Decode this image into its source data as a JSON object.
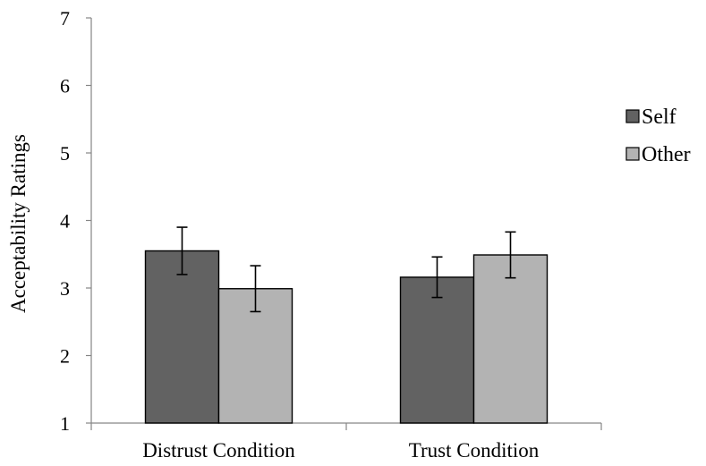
{
  "chart_data": {
    "type": "bar",
    "categories": [
      "Distrust Condition",
      "Trust Condition"
    ],
    "series": [
      {
        "name": "Self",
        "values": [
          3.55,
          3.16
        ],
        "errors": [
          0.35,
          0.3
        ],
        "color": "#626262"
      },
      {
        "name": "Other",
        "values": [
          2.99,
          3.49
        ],
        "errors": [
          0.34,
          0.34
        ],
        "color": "#b3b3b3"
      }
    ],
    "title": "",
    "xlabel": "",
    "ylabel": "Acceptability Ratings",
    "ylim": [
      1,
      7
    ],
    "yticks": [
      1,
      2,
      3,
      4,
      5,
      6,
      7
    ],
    "grid": false,
    "legend_position": "right"
  }
}
